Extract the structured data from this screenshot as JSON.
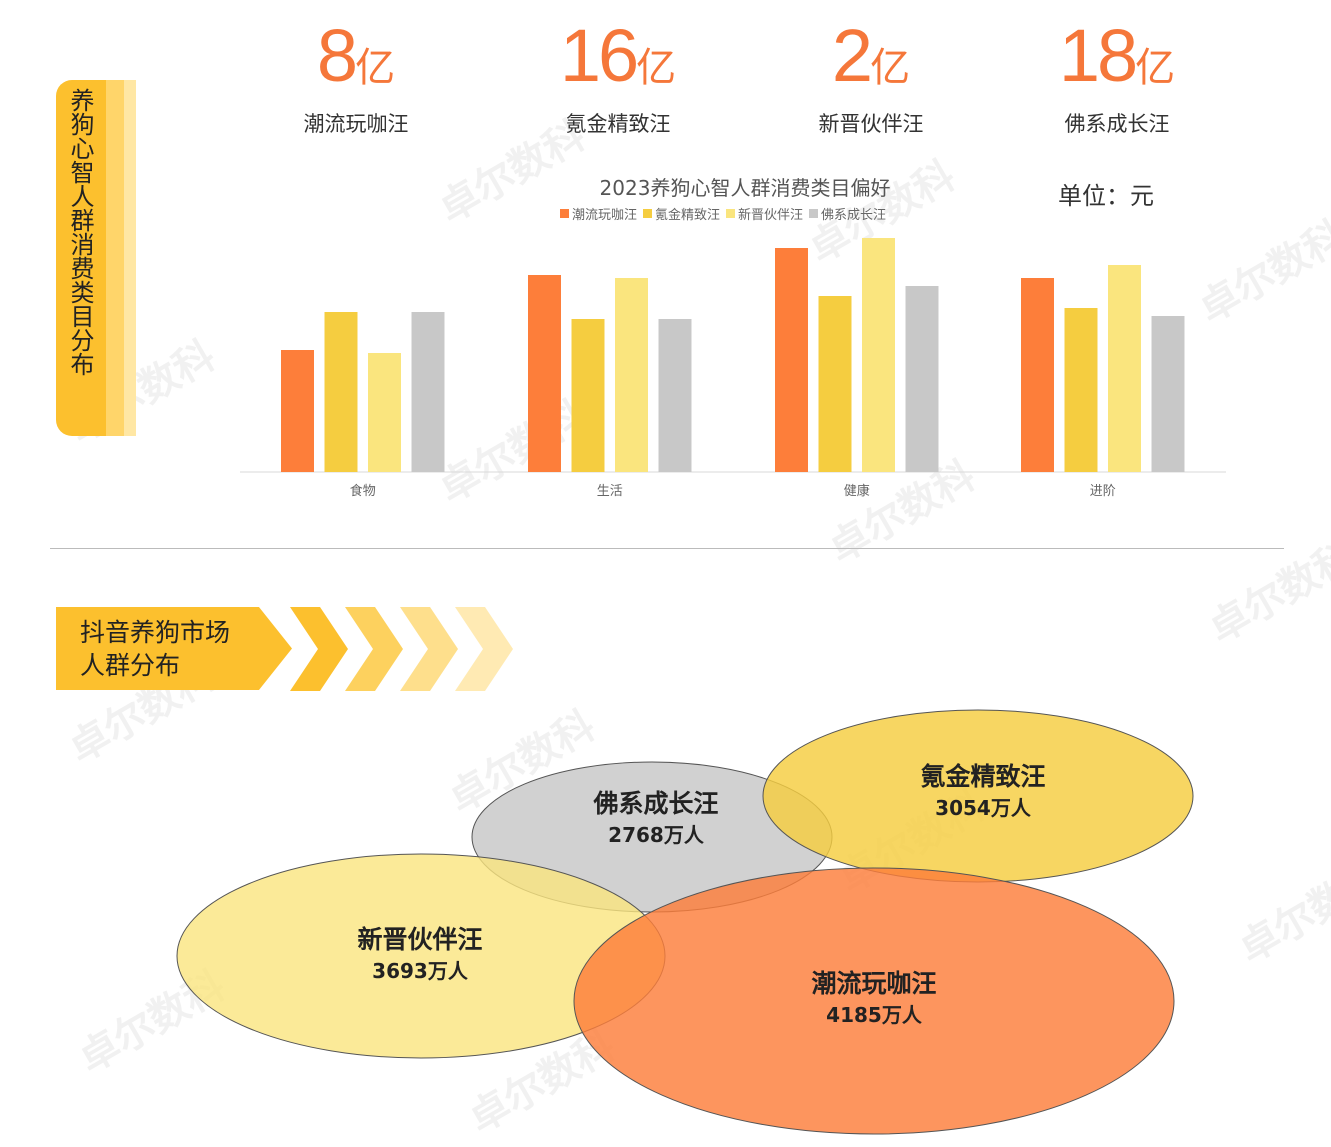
{
  "stats": [
    {
      "number": "8",
      "unit": "亿",
      "label": "潮流玩咖汪"
    },
    {
      "number": "16",
      "unit": "亿",
      "label": "氪金精致汪"
    },
    {
      "number": "2",
      "unit": "亿",
      "label": "新晋伙伴汪"
    },
    {
      "number": "18",
      "unit": "亿",
      "label": "佛系成长汪"
    }
  ],
  "unit_label": "单位：元",
  "side_tag": "养狗心智人群消费类目分布",
  "banner": {
    "line1": "抖音养狗市场",
    "line2": "人群分布"
  },
  "colors": {
    "orange": "#fd7e3a",
    "gold": "#f5cd40",
    "lightyellow": "#fae57e",
    "gray": "#c8c8c8",
    "accent": "#f5773a",
    "tag": "#fcc02e"
  },
  "chart_data": {
    "type": "bar",
    "title": "2023养狗心智人群消费类目偏好",
    "categories": [
      "食物",
      "生活",
      "健康",
      "进阶"
    ],
    "series": [
      {
        "name": "潮流玩咖汪",
        "color": "#fd7e3a",
        "values": [
          122,
          197,
          224,
          194
        ]
      },
      {
        "name": "氪金精致汪",
        "color": "#f5cd40",
        "values": [
          160,
          153,
          176,
          164
        ]
      },
      {
        "name": "新晋伙伴汪",
        "color": "#fae57e",
        "values": [
          119,
          194,
          234,
          207
        ]
      },
      {
        "name": "佛系成长汪",
        "color": "#c8c8c8",
        "values": [
          160,
          153,
          186,
          156
        ]
      }
    ],
    "ylim": [
      0,
      240
    ],
    "grid": false,
    "legend": "top"
  },
  "venn": [
    {
      "name": "佛系成长汪",
      "count": "2768万人"
    },
    {
      "name": "氪金精致汪",
      "count": "3054万人"
    },
    {
      "name": "新晋伙伴汪",
      "count": "3693万人"
    },
    {
      "name": "潮流玩咖汪",
      "count": "4185万人"
    }
  ],
  "watermark": "卓尔数科"
}
